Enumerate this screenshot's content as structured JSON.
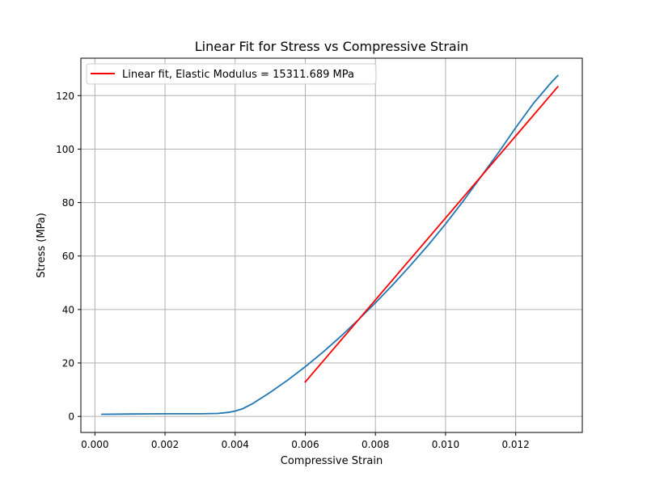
{
  "chart_data": {
    "type": "line",
    "title": "Linear Fit for Stress vs Compressive Strain",
    "xlabel": "Compressive Strain",
    "ylabel": "Stress (MPa)",
    "xlim": [
      -0.0004,
      0.0139
    ],
    "ylim": [
      -6,
      134
    ],
    "xticks": [
      0.0,
      0.002,
      0.004,
      0.006,
      0.008,
      0.01,
      0.012
    ],
    "xtick_labels": [
      "0.000",
      "0.002",
      "0.004",
      "0.006",
      "0.008",
      "0.010",
      "0.012"
    ],
    "yticks": [
      0,
      20,
      40,
      60,
      80,
      100,
      120
    ],
    "ytick_labels": [
      "0",
      "20",
      "40",
      "60",
      "80",
      "100",
      "120"
    ],
    "grid": true,
    "legend_position": "top-left",
    "series": [
      {
        "color": "#1f77b4",
        "x": [
          0.0002,
          0.001,
          0.002,
          0.003,
          0.0035,
          0.0038,
          0.004,
          0.0042,
          0.0045,
          0.005,
          0.0055,
          0.006,
          0.0065,
          0.007,
          0.0075,
          0.008,
          0.0085,
          0.009,
          0.0095,
          0.01,
          0.0105,
          0.011,
          0.0115,
          0.012,
          0.0125,
          0.013,
          0.0132
        ],
        "y": [
          0.8,
          0.9,
          1.0,
          1.0,
          1.1,
          1.5,
          2.0,
          2.8,
          4.8,
          9.0,
          13.6,
          18.6,
          24.0,
          29.8,
          36.0,
          42.5,
          49.3,
          56.5,
          64.0,
          72.0,
          80.5,
          89.5,
          98.5,
          108.0,
          117.0,
          124.7,
          127.5
        ]
      },
      {
        "name": "Linear fit, Elastic Modulus = 15311.689 MPa",
        "color": "#ff0000",
        "x": [
          0.006,
          0.0132
        ],
        "y": [
          12.9,
          123.3
        ]
      }
    ]
  }
}
